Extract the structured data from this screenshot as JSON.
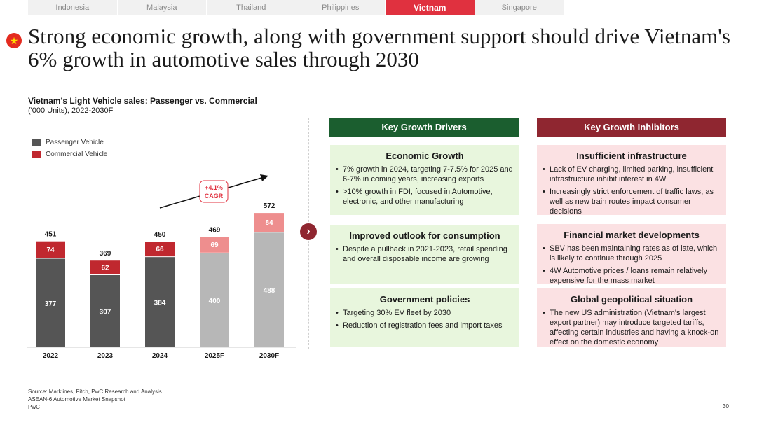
{
  "tabs": [
    {
      "label": "Indonesia",
      "active": false
    },
    {
      "label": "Malaysia",
      "active": false
    },
    {
      "label": "Thailand",
      "active": false
    },
    {
      "label": "Philippines",
      "active": false
    },
    {
      "label": "Vietnam",
      "active": true
    },
    {
      "label": "Singapore",
      "active": false
    }
  ],
  "flag_icon": "★",
  "title": "Strong economic growth, along with government support should drive Vietnam's 6% growth in automotive sales through 2030",
  "chart_data": {
    "type": "bar",
    "title": "Vietnam's Light Vehicle sales: Passenger vs. Commercial",
    "subtitle": "('000 Units), 2022-2030F",
    "categories": [
      "2022",
      "2023",
      "2024",
      "2025F",
      "2030F"
    ],
    "series": [
      {
        "name": "Passenger Vehicle",
        "values": [
          377,
          307,
          384,
          400,
          488
        ]
      },
      {
        "name": "Commercial Vehicle",
        "values": [
          74,
          62,
          66,
          69,
          84
        ]
      }
    ],
    "totals": [
      451,
      369,
      450,
      469,
      572
    ],
    "forecast": [
      false,
      false,
      false,
      true,
      true
    ],
    "annotation": {
      "line1": "+4.1%",
      "line2": "CAGR"
    },
    "colors": {
      "passenger": "#555555",
      "commercial": "#c0282f",
      "passenger_forecast": "#b7b7b7",
      "commercial_forecast": "#ee8e8e",
      "cagr_border": "#e0313f"
    }
  },
  "drivers": {
    "header": "Key Growth Drivers",
    "boxes": [
      {
        "title": "Economic Growth",
        "bullets": [
          "7% growth in 2024, targeting 7-7.5% for 2025 and 6-7% in coming years, increasing exports",
          ">10% growth in FDI, focused in Automotive, electronic, and other manufacturing"
        ]
      },
      {
        "title": "Improved outlook for consumption",
        "bullets": [
          "Despite a pullback in 2021-2023, retail spending and overall disposable income are growing"
        ]
      },
      {
        "title": "Government policies",
        "bullets": [
          "Targeting 30% EV fleet by 2030",
          "Reduction of registration fees and import taxes"
        ]
      }
    ]
  },
  "inhibitors": {
    "header": "Key Growth Inhibitors",
    "boxes": [
      {
        "title": "Insufficient infrastructure",
        "bullets": [
          "Lack of EV charging, limited parking, insufficient infrastructure inhibit interest in 4W",
          "Increasingly strict enforcement of traffic laws, as well as new train routes impact consumer decisions"
        ]
      },
      {
        "title": "Financial market developments",
        "bullets": [
          "SBV has been maintaining rates as of late, which is likely to continue through 2025",
          "4W Automotive prices / loans remain relatively expensive for the mass market"
        ]
      },
      {
        "title": "Global geopolitical situation",
        "bullets": [
          "The new US administration (Vietnam's largest export partner) may introduce targeted tariffs, affecting certain industries and having a knock-on effect on the domestic economy"
        ]
      }
    ]
  },
  "arrow_icon": "›",
  "footer": {
    "source": "Source: Marklines, Fitch, PwC Research and Analysis",
    "report": "ASEAN-6 Automotive Market Snapshot",
    "company": "PwC"
  },
  "page_number": "30"
}
